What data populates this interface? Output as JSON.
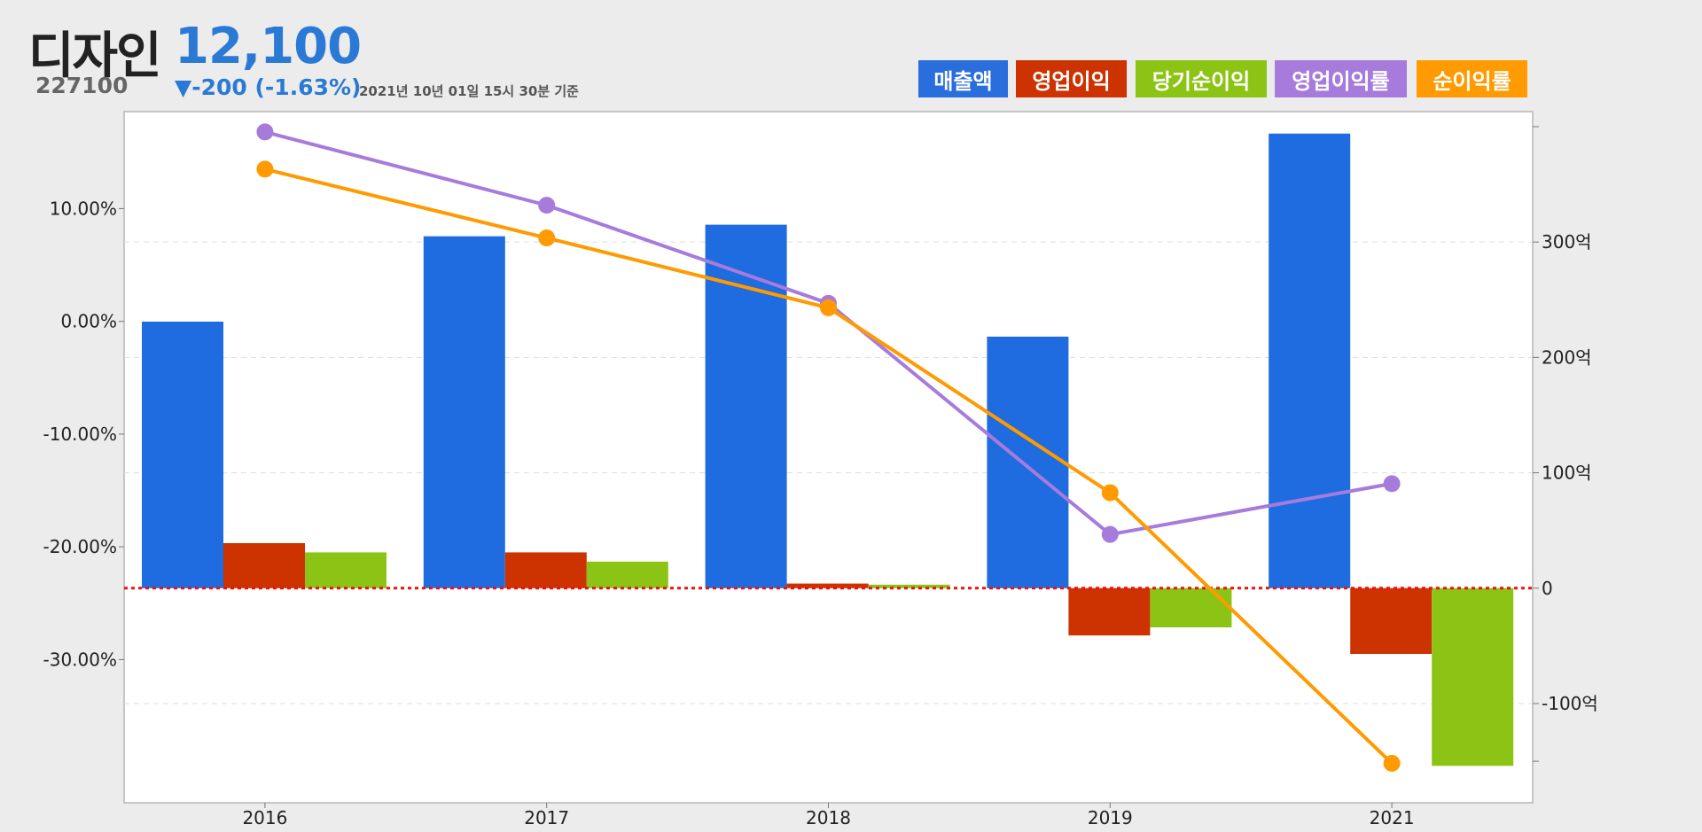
{
  "header": {
    "name": "디자인",
    "code": "227100",
    "price": "12,100",
    "change": "▼-200 (-1.63%)",
    "as_of": "2021년 10년 01일 15시 30분 기준"
  },
  "legend": [
    {
      "label": "매출액",
      "color": "#2a6ede"
    },
    {
      "label": "영업이익",
      "color": "#cc3300"
    },
    {
      "label": "당기순이익",
      "color": "#8bc414"
    },
    {
      "label": "영업이익률",
      "color": "#a77bdb"
    },
    {
      "label": "순이익률",
      "color": "#ff9a00"
    }
  ],
  "chart_data": {
    "type": "bar",
    "categories": [
      "2016",
      "2017",
      "2018",
      "2019",
      "2021"
    ],
    "series": [
      {
        "name": "매출액",
        "kind": "bar",
        "axis": "right",
        "color": "#1e6ce0",
        "values": [
          231,
          305,
          315,
          218,
          394
        ]
      },
      {
        "name": "영업이익",
        "kind": "bar",
        "axis": "right",
        "color": "#cc3300",
        "values": [
          39,
          31,
          4,
          -41,
          -57
        ]
      },
      {
        "name": "당기순이익",
        "kind": "bar",
        "axis": "right",
        "color": "#8bc414",
        "values": [
          31,
          23,
          3,
          -34,
          -154
        ]
      },
      {
        "name": "영업이익률",
        "kind": "line",
        "axis": "left",
        "color": "#a77bdb",
        "values": [
          16.8,
          10.3,
          1.6,
          -18.9,
          -14.4
        ]
      },
      {
        "name": "순이익률",
        "kind": "line",
        "axis": "left",
        "color": "#ff9a00",
        "values": [
          13.5,
          7.4,
          1.2,
          -15.2,
          -39.2
        ]
      }
    ],
    "left_axis": {
      "ticks": [
        "10.00%",
        "0.00%",
        "-10.00%",
        "-20.00%",
        "-30.00%"
      ],
      "tick_values": [
        10,
        0,
        -10,
        -20,
        -30
      ],
      "range": [
        -42.7,
        18.6
      ]
    },
    "right_axis": {
      "ticks": [
        "300억",
        "200억",
        "100억",
        "0",
        "-100억"
      ],
      "tick_values": [
        300,
        200,
        100,
        0,
        -100
      ],
      "range": [
        -186,
        413
      ]
    },
    "grid": "horizontal dashed",
    "zero_line": "red dotted"
  }
}
